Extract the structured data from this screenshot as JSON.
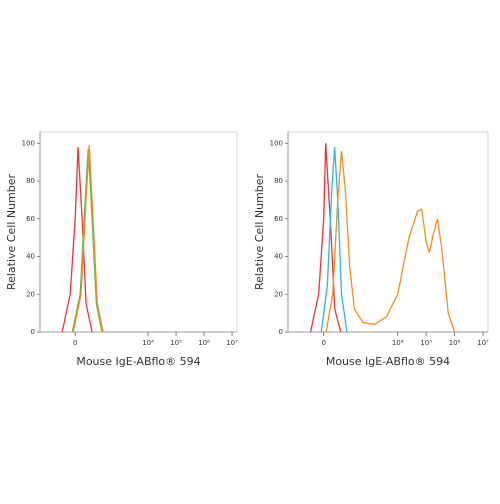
{
  "chart_data": [
    {
      "type": "line",
      "xlabel": "Mouse IgE-ABflo® 594",
      "ylabel": "Relative Cell Number",
      "xscale": "asinh",
      "xlim": [
        -450,
        15000000
      ],
      "ylim": [
        0,
        106
      ],
      "xticks": [
        0,
        {
          "value": 10000,
          "label": "10⁴"
        },
        {
          "value": 100000,
          "label": "10⁵"
        },
        {
          "value": 1000000,
          "label": "10⁶"
        },
        {
          "value": 10000000,
          "label": "10⁷"
        }
      ],
      "yticks": [
        0,
        20,
        40,
        60,
        80,
        100
      ],
      "series": [
        {
          "color": "#e8343a",
          "x": [
            -64,
            -21,
            0,
            12,
            30,
            51,
            94
          ],
          "values": [
            0,
            20,
            60,
            98,
            60,
            15,
            0
          ]
        },
        {
          "color": "#5cb85c",
          "x": [
            -12,
            21,
            46,
            64,
            86,
            138,
            224
          ],
          "values": [
            0,
            20,
            70,
            97,
            70,
            15,
            0
          ]
        },
        {
          "color": "#f28c1e",
          "x": [
            -8,
            25,
            51,
            71,
            94,
            150,
            245
          ],
          "values": [
            0,
            20,
            70,
            99,
            70,
            15,
            0
          ]
        }
      ]
    },
    {
      "type": "line",
      "xlabel": "Mouse IgE-ABflo® 594",
      "ylabel": "Relative Cell Number",
      "xscale": "asinh",
      "xlim": [
        -450,
        15000000
      ],
      "ylim": [
        0,
        106
      ],
      "xticks": [
        0,
        {
          "value": 10000,
          "label": "10⁴"
        },
        {
          "value": 100000,
          "label": "10⁵"
        },
        {
          "value": 1000000,
          "label": "10⁶"
        },
        {
          "value": 10000000,
          "label": "10⁷"
        }
      ],
      "yticks": [
        0,
        20,
        40,
        60,
        80,
        100
      ],
      "series": [
        {
          "color": "#e8343a",
          "x": [
            -64,
            -21,
            0,
            8,
            30,
            51,
            94
          ],
          "values": [
            0,
            20,
            60,
            100,
            55,
            12,
            0
          ]
        },
        {
          "color": "#29b6e0",
          "x": [
            -10,
            15,
            35,
            50,
            70,
            100,
            160
          ],
          "values": [
            0,
            25,
            75,
            98,
            70,
            20,
            0
          ]
        },
        {
          "color": "#f28c1e",
          "x": [
            10,
            40,
            70,
            100,
            140,
            200,
            300,
            600,
            1500,
            4000,
            10000,
            25000,
            50000,
            70000,
            100000,
            130000,
            180000,
            250000,
            350000,
            600000,
            1000000
          ],
          "values": [
            0,
            20,
            70,
            96,
            75,
            35,
            12,
            5,
            4,
            8,
            20,
            50,
            64,
            65,
            48,
            42,
            52,
            60,
            45,
            10,
            0
          ]
        }
      ]
    }
  ]
}
